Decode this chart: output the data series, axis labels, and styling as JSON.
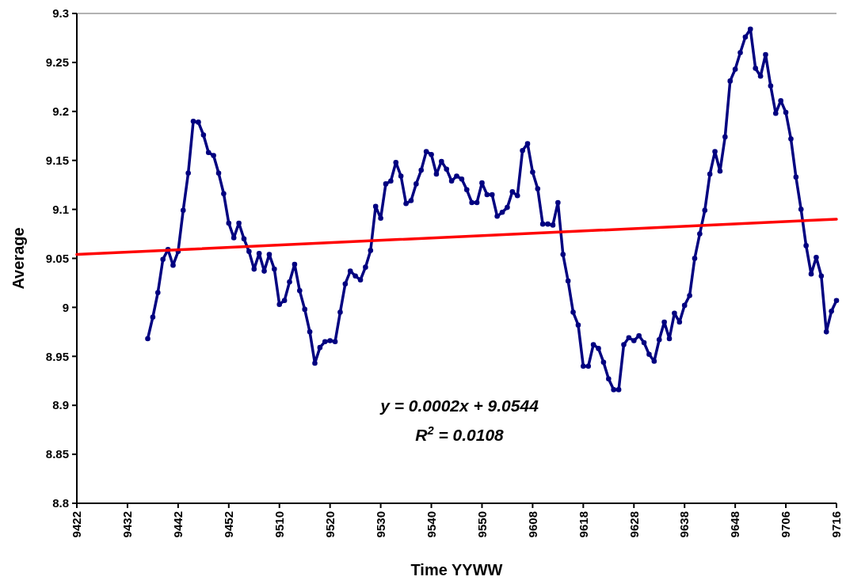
{
  "chart_data": {
    "type": "line",
    "xlabel": "Time YYWW",
    "ylabel": "Average",
    "categories": [
      "9422",
      null,
      null,
      null,
      null,
      null,
      null,
      null,
      null,
      null,
      "9432",
      null,
      null,
      null,
      null,
      null,
      null,
      null,
      null,
      null,
      "9442",
      null,
      null,
      null,
      null,
      null,
      null,
      null,
      null,
      null,
      "9452",
      null,
      null,
      null,
      null,
      null,
      null,
      null,
      null,
      null,
      "9510",
      null,
      null,
      null,
      null,
      null,
      null,
      null,
      null,
      null,
      "9520",
      null,
      null,
      null,
      null,
      null,
      null,
      null,
      null,
      null,
      "9530",
      null,
      null,
      null,
      null,
      null,
      null,
      null,
      null,
      null,
      "9540",
      null,
      null,
      null,
      null,
      null,
      null,
      null,
      null,
      null,
      "9550",
      null,
      null,
      null,
      null,
      null,
      null,
      null,
      null,
      null,
      "9608",
      null,
      null,
      null,
      null,
      null,
      null,
      null,
      null,
      null,
      "9618",
      null,
      null,
      null,
      null,
      null,
      null,
      null,
      null,
      null,
      "9628",
      null,
      null,
      null,
      null,
      null,
      null,
      null,
      null,
      null,
      "9638",
      null,
      null,
      null,
      null,
      null,
      null,
      null,
      null,
      null,
      "9648",
      null,
      null,
      null,
      null,
      null,
      null,
      null,
      null,
      null,
      "9706",
      null,
      null,
      null,
      null,
      null,
      null,
      null,
      null,
      null,
      "9716"
    ],
    "ylim": [
      8.8,
      9.3
    ],
    "yticks": [
      8.8,
      8.85,
      8.9,
      8.95,
      9,
      9.05,
      9.1,
      9.15,
      9.2,
      9.25,
      9.3
    ],
    "grid": false,
    "annotations": [
      "y = 0.0002x + 9.0544",
      "R$^{2}$ = 0.0108"
    ],
    "series": [
      {
        "color": "#000080",
        "marker": "circle",
        "line_style": "solid",
        "values": [
          null,
          null,
          null,
          null,
          null,
          null,
          null,
          null,
          null,
          null,
          null,
          null,
          null,
          null,
          8.968,
          8.99,
          9.015,
          9.049,
          9.059,
          9.043,
          9.057,
          9.099,
          9.137,
          9.19,
          9.189,
          9.176,
          9.158,
          9.155,
          9.137,
          9.116,
          9.086,
          9.071,
          9.086,
          9.07,
          9.057,
          9.039,
          9.055,
          9.037,
          9.054,
          9.039,
          9.003,
          9.007,
          9.026,
          9.044,
          9.017,
          8.998,
          8.975,
          8.943,
          8.959,
          8.965,
          8.966,
          8.965,
          8.995,
          9.024,
          9.037,
          9.032,
          9.028,
          9.041,
          9.058,
          9.103,
          9.091,
          9.126,
          9.129,
          9.148,
          9.134,
          9.106,
          9.109,
          9.126,
          9.14,
          9.159,
          9.156,
          9.136,
          9.149,
          9.141,
          9.129,
          9.134,
          9.131,
          9.12,
          9.107,
          9.107,
          9.127,
          9.115,
          9.115,
          9.093,
          9.097,
          9.102,
          9.118,
          9.114,
          9.16,
          9.167,
          9.138,
          9.121,
          9.085,
          9.085,
          9.084,
          9.107,
          9.054,
          9.027,
          8.995,
          8.982,
          8.94,
          8.94,
          8.962,
          8.958,
          8.944,
          8.927,
          8.916,
          8.916,
          8.962,
          8.969,
          8.966,
          8.971,
          8.964,
          8.952,
          8.945,
          8.967,
          8.985,
          8.968,
          8.994,
          8.985,
          9.002,
          9.012,
          9.05,
          9.075,
          9.099,
          9.136,
          9.159,
          9.139,
          9.174,
          9.231,
          9.243,
          9.26,
          9.276,
          9.284,
          9.244,
          9.236,
          9.258,
          9.226,
          9.198,
          9.211,
          9.199,
          9.172,
          9.133,
          9.1,
          9.063,
          9.034,
          9.051,
          9.032,
          8.975,
          8.996,
          9.007
        ]
      },
      {
        "type": "line",
        "color": "#ff0000",
        "marker": "none",
        "line_style": "solid",
        "values": [
          9.054,
          null,
          null,
          null,
          null,
          null,
          null,
          null,
          null,
          null,
          null,
          null,
          null,
          null,
          null,
          null,
          null,
          null,
          null,
          null,
          null,
          null,
          null,
          null,
          null,
          null,
          null,
          null,
          null,
          null,
          null,
          null,
          null,
          null,
          null,
          null,
          null,
          null,
          null,
          null,
          null,
          null,
          null,
          null,
          null,
          null,
          null,
          null,
          null,
          null,
          null,
          null,
          null,
          null,
          null,
          null,
          null,
          null,
          null,
          null,
          null,
          null,
          null,
          null,
          null,
          null,
          null,
          null,
          null,
          null,
          null,
          null,
          null,
          null,
          null,
          null,
          null,
          null,
          null,
          null,
          null,
          null,
          null,
          null,
          null,
          null,
          null,
          null,
          null,
          null,
          null,
          null,
          null,
          null,
          null,
          null,
          null,
          null,
          null,
          null,
          null,
          null,
          null,
          null,
          null,
          null,
          null,
          null,
          null,
          null,
          null,
          null,
          null,
          null,
          null,
          null,
          null,
          null,
          null,
          null,
          null,
          null,
          null,
          null,
          null,
          null,
          null,
          null,
          null,
          null,
          null,
          null,
          null,
          null,
          null,
          null,
          null,
          null,
          null,
          null,
          null,
          null,
          null,
          null,
          null,
          null,
          null,
          null,
          null,
          null,
          9.09
        ]
      }
    ]
  }
}
